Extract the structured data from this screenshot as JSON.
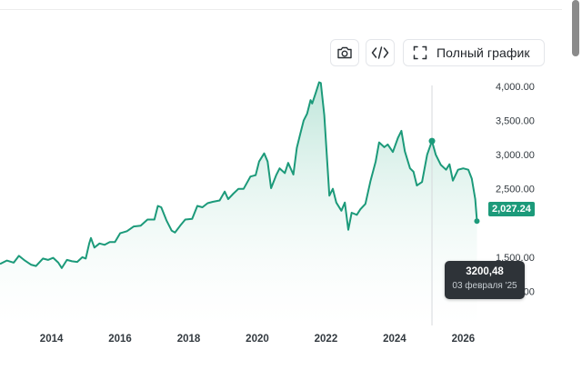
{
  "toolbar": {
    "camera_icon": "camera-icon",
    "embed_icon": "code-icon",
    "full_chart_icon": "expand-icon",
    "full_chart_label": "Полный график"
  },
  "current_price": "2,027.24",
  "tooltip": {
    "value": "3200,48",
    "date": "03 февраля '25"
  },
  "colors": {
    "line": "#1c9a7a",
    "fill_top": "#b8e3d6",
    "badge": "#1c9a7a",
    "tooltip_bg": "#2e3338"
  },
  "chart_data": {
    "type": "area",
    "x_range": [
      2012.5,
      2026.6
    ],
    "y_range": [
      500,
      4200
    ],
    "y_ticks": [
      {
        "v": 4000,
        "label": "4,000.00"
      },
      {
        "v": 3500,
        "label": "3,500.00"
      },
      {
        "v": 3000,
        "label": "3,000.00"
      },
      {
        "v": 2500,
        "label": "2,500.00"
      },
      {
        "v": 1500,
        "label": "1,500.00"
      },
      {
        "v": 1000,
        "label": "1,000.00"
      }
    ],
    "x_ticks": [
      {
        "v": 2014,
        "label": "2014"
      },
      {
        "v": 2016,
        "label": "2016"
      },
      {
        "v": 2018,
        "label": "2018"
      },
      {
        "v": 2020,
        "label": "2020"
      },
      {
        "v": 2022,
        "label": "2022"
      },
      {
        "v": 2024,
        "label": "2024"
      },
      {
        "v": 2026,
        "label": "2026"
      }
    ],
    "hover_point": {
      "x": 2025.09,
      "y": 3200.48
    },
    "last_point": {
      "x": 2026.4,
      "y": 2027.24
    },
    "series": [
      {
        "points": [
          [
            2012.5,
            1400
          ],
          [
            2012.7,
            1450
          ],
          [
            2012.9,
            1420
          ],
          [
            2013.05,
            1520
          ],
          [
            2013.2,
            1460
          ],
          [
            2013.4,
            1390
          ],
          [
            2013.55,
            1370
          ],
          [
            2013.75,
            1480
          ],
          [
            2013.9,
            1460
          ],
          [
            2014.05,
            1490
          ],
          [
            2014.2,
            1420
          ],
          [
            2014.3,
            1340
          ],
          [
            2014.45,
            1460
          ],
          [
            2014.6,
            1440
          ],
          [
            2014.75,
            1430
          ],
          [
            2014.9,
            1500
          ],
          [
            2015.0,
            1480
          ],
          [
            2015.1,
            1700
          ],
          [
            2015.15,
            1780
          ],
          [
            2015.25,
            1640
          ],
          [
            2015.4,
            1700
          ],
          [
            2015.55,
            1680
          ],
          [
            2015.7,
            1720
          ],
          [
            2015.85,
            1720
          ],
          [
            2016.0,
            1850
          ],
          [
            2016.2,
            1880
          ],
          [
            2016.4,
            1950
          ],
          [
            2016.6,
            1960
          ],
          [
            2016.8,
            2050
          ],
          [
            2017.0,
            2050
          ],
          [
            2017.1,
            2250
          ],
          [
            2017.2,
            2230
          ],
          [
            2017.35,
            2040
          ],
          [
            2017.5,
            1890
          ],
          [
            2017.6,
            1860
          ],
          [
            2017.75,
            1960
          ],
          [
            2017.9,
            2050
          ],
          [
            2018.1,
            2060
          ],
          [
            2018.25,
            2250
          ],
          [
            2018.4,
            2230
          ],
          [
            2018.55,
            2290
          ],
          [
            2018.7,
            2310
          ],
          [
            2018.9,
            2330
          ],
          [
            2019.05,
            2460
          ],
          [
            2019.15,
            2350
          ],
          [
            2019.3,
            2430
          ],
          [
            2019.45,
            2500
          ],
          [
            2019.6,
            2500
          ],
          [
            2019.8,
            2680
          ],
          [
            2019.95,
            2700
          ],
          [
            2020.05,
            2900
          ],
          [
            2020.2,
            3020
          ],
          [
            2020.3,
            2900
          ],
          [
            2020.4,
            2510
          ],
          [
            2020.55,
            2700
          ],
          [
            2020.65,
            2800
          ],
          [
            2020.8,
            2730
          ],
          [
            2020.9,
            2880
          ],
          [
            2021.05,
            2710
          ],
          [
            2021.15,
            3100
          ],
          [
            2021.25,
            3300
          ],
          [
            2021.35,
            3500
          ],
          [
            2021.45,
            3600
          ],
          [
            2021.55,
            3800
          ],
          [
            2021.6,
            3750
          ],
          [
            2021.7,
            3900
          ],
          [
            2021.8,
            4060
          ],
          [
            2021.85,
            4050
          ],
          [
            2021.95,
            3580
          ],
          [
            2022.05,
            2800
          ],
          [
            2022.1,
            2400
          ],
          [
            2022.2,
            2500
          ],
          [
            2022.3,
            2300
          ],
          [
            2022.45,
            2180
          ],
          [
            2022.55,
            2300
          ],
          [
            2022.65,
            1900
          ],
          [
            2022.75,
            2150
          ],
          [
            2022.9,
            2120
          ],
          [
            2023.0,
            2200
          ],
          [
            2023.15,
            2280
          ],
          [
            2023.3,
            2620
          ],
          [
            2023.45,
            2900
          ],
          [
            2023.55,
            3180
          ],
          [
            2023.7,
            3110
          ],
          [
            2023.8,
            3150
          ],
          [
            2023.95,
            3040
          ],
          [
            2024.1,
            3250
          ],
          [
            2024.2,
            3350
          ],
          [
            2024.3,
            3050
          ],
          [
            2024.45,
            2800
          ],
          [
            2024.55,
            2750
          ],
          [
            2024.65,
            2550
          ],
          [
            2024.8,
            2600
          ],
          [
            2024.95,
            3000
          ],
          [
            2025.09,
            3200.48
          ],
          [
            2025.2,
            3000
          ],
          [
            2025.35,
            2850
          ],
          [
            2025.5,
            2780
          ],
          [
            2025.6,
            2860
          ],
          [
            2025.7,
            2620
          ],
          [
            2025.85,
            2780
          ],
          [
            2026.0,
            2800
          ],
          [
            2026.15,
            2780
          ],
          [
            2026.25,
            2650
          ],
          [
            2026.35,
            2350
          ],
          [
            2026.4,
            2027.24
          ]
        ]
      }
    ]
  }
}
